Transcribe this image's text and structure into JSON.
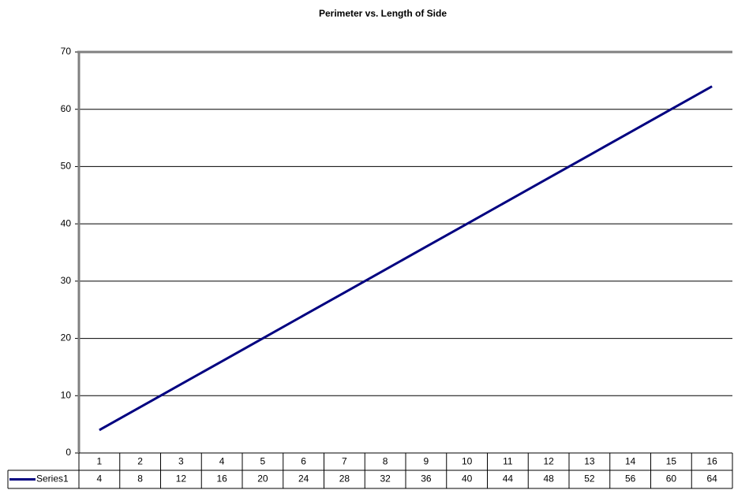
{
  "chart_data": {
    "type": "line",
    "title": "Perimeter vs. Length of Side",
    "categories": [
      1,
      2,
      3,
      4,
      5,
      6,
      7,
      8,
      9,
      10,
      11,
      12,
      13,
      14,
      15,
      16
    ],
    "series": [
      {
        "name": "Series1",
        "color": "#000080",
        "values": [
          4,
          8,
          12,
          16,
          20,
          24,
          28,
          32,
          36,
          40,
          44,
          48,
          52,
          56,
          60,
          64
        ]
      }
    ],
    "ylim": [
      0,
      70
    ],
    "yticks": [
      0,
      10,
      20,
      30,
      40,
      50,
      60,
      70
    ],
    "grid": true
  }
}
